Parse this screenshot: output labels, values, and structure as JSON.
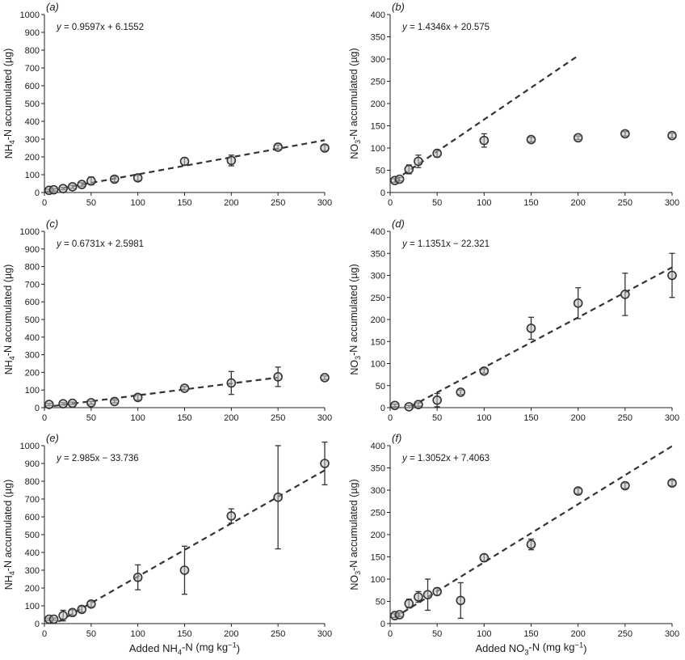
{
  "chart_data": [
    {
      "panel_label": "(a)",
      "type": "scatter",
      "ylabel": "NH4-N accumulated (µg)",
      "xlabel": "",
      "xlim": [
        0,
        300
      ],
      "ylim": [
        0,
        1000
      ],
      "xticks": [
        "0",
        "50",
        "100",
        "150",
        "200",
        "250",
        "300"
      ],
      "yticks": [
        "0",
        "100",
        "200",
        "300",
        "400",
        "500",
        "600",
        "700",
        "800",
        "900",
        "1000"
      ],
      "equation": "y = 0.9597x + 6.1552",
      "fit": {
        "slope": 0.9597,
        "intercept": 6.1552,
        "x_range": [
          20,
          300
        ]
      },
      "points": [
        {
          "x": 5,
          "y": 12,
          "err": 6
        },
        {
          "x": 10,
          "y": 15,
          "err": 6
        },
        {
          "x": 20,
          "y": 22,
          "err": 6
        },
        {
          "x": 30,
          "y": 32,
          "err": 8
        },
        {
          "x": 40,
          "y": 45,
          "err": 10
        },
        {
          "x": 50,
          "y": 65,
          "err": 22
        },
        {
          "x": 75,
          "y": 75,
          "err": 15
        },
        {
          "x": 100,
          "y": 82,
          "err": 15
        },
        {
          "x": 150,
          "y": 175,
          "err": 20
        },
        {
          "x": 200,
          "y": 180,
          "err": 30
        },
        {
          "x": 250,
          "y": 255,
          "err": 12
        },
        {
          "x": 300,
          "y": 250,
          "err": 15
        }
      ]
    },
    {
      "panel_label": "(b)",
      "type": "scatter",
      "ylabel": "NO3-N accumulated (µg)",
      "xlabel": "",
      "xlim": [
        0,
        300
      ],
      "ylim": [
        0,
        400
      ],
      "xticks": [
        "0",
        "50",
        "100",
        "150",
        "200",
        "250",
        "300"
      ],
      "yticks": [
        "0",
        "50",
        "100",
        "150",
        "200",
        "250",
        "300",
        "350",
        "400"
      ],
      "equation": "y = 1.4346x + 20.575",
      "fit": {
        "slope": 1.4346,
        "intercept": 20.575,
        "x_range": [
          5,
          200
        ]
      },
      "points": [
        {
          "x": 5,
          "y": 27,
          "err": 4
        },
        {
          "x": 10,
          "y": 30,
          "err": 4
        },
        {
          "x": 20,
          "y": 52,
          "err": 10
        },
        {
          "x": 30,
          "y": 70,
          "err": 14
        },
        {
          "x": 50,
          "y": 88,
          "err": 8
        },
        {
          "x": 100,
          "y": 117,
          "err": 15
        },
        {
          "x": 150,
          "y": 119,
          "err": 5
        },
        {
          "x": 200,
          "y": 123,
          "err": 4
        },
        {
          "x": 250,
          "y": 132,
          "err": 5
        },
        {
          "x": 300,
          "y": 128,
          "err": 5
        }
      ]
    },
    {
      "panel_label": "(c)",
      "type": "scatter",
      "ylabel": "NH4-N accumulated (µg)",
      "xlabel": "",
      "xlim": [
        0,
        300
      ],
      "ylim": [
        0,
        1000
      ],
      "xticks": [
        "0",
        "50",
        "100",
        "150",
        "200",
        "250",
        "300"
      ],
      "yticks": [
        "0",
        "100",
        "200",
        "300",
        "400",
        "500",
        "600",
        "700",
        "800",
        "900",
        "1000"
      ],
      "equation": "y = 0.6731x + 2.5981",
      "fit": {
        "slope": 0.6731,
        "intercept": 2.5981,
        "x_range": [
          10,
          250
        ]
      },
      "points": [
        {
          "x": 5,
          "y": 18,
          "err": 6
        },
        {
          "x": 20,
          "y": 22,
          "err": 6
        },
        {
          "x": 30,
          "y": 25,
          "err": 6
        },
        {
          "x": 50,
          "y": 28,
          "err": 8
        },
        {
          "x": 75,
          "y": 35,
          "err": 8
        },
        {
          "x": 100,
          "y": 58,
          "err": 15
        },
        {
          "x": 150,
          "y": 110,
          "err": 10
        },
        {
          "x": 200,
          "y": 140,
          "err": 65
        },
        {
          "x": 250,
          "y": 175,
          "err": 55
        },
        {
          "x": 300,
          "y": 170,
          "err": 10
        }
      ]
    },
    {
      "panel_label": "(d)",
      "type": "scatter",
      "ylabel": "NO3-N accumulated (µg)",
      "xlabel": "",
      "xlim": [
        0,
        300
      ],
      "ylim": [
        0,
        400
      ],
      "xticks": [
        "0",
        "50",
        "100",
        "150",
        "200",
        "250",
        "300"
      ],
      "yticks": [
        "0",
        "50",
        "100",
        "150",
        "200",
        "250",
        "300",
        "350",
        "400"
      ],
      "equation": "y = 1.1351x − 22.321",
      "fit": {
        "slope": 1.1351,
        "intercept": -22.321,
        "x_range": [
          22,
          300
        ]
      },
      "points": [
        {
          "x": 5,
          "y": 5,
          "err": 3
        },
        {
          "x": 20,
          "y": 2,
          "err": 3
        },
        {
          "x": 30,
          "y": 7,
          "err": 4
        },
        {
          "x": 50,
          "y": 17,
          "err": 15
        },
        {
          "x": 75,
          "y": 35,
          "err": 5
        },
        {
          "x": 100,
          "y": 83,
          "err": 5
        },
        {
          "x": 150,
          "y": 180,
          "err": 25
        },
        {
          "x": 200,
          "y": 237,
          "err": 35
        },
        {
          "x": 250,
          "y": 257,
          "err": 48
        },
        {
          "x": 300,
          "y": 300,
          "err": 50
        }
      ]
    },
    {
      "panel_label": "(e)",
      "type": "scatter",
      "ylabel": "NH4-N accumulated (µg)",
      "xlabel": "Added NH4-N (mg kg−1)",
      "xlim": [
        0,
        300
      ],
      "ylim": [
        0,
        1000
      ],
      "xticks": [
        "0",
        "50",
        "100",
        "150",
        "200",
        "250",
        "300"
      ],
      "yticks": [
        "0",
        "100",
        "200",
        "300",
        "400",
        "500",
        "600",
        "700",
        "800",
        "900",
        "1000"
      ],
      "equation": "y = 2.985x − 33.736",
      "fit": {
        "slope": 2.985,
        "intercept": -33.736,
        "x_range": [
          15,
          300
        ]
      },
      "points": [
        {
          "x": 5,
          "y": 25,
          "err": 6
        },
        {
          "x": 10,
          "y": 25,
          "err": 6
        },
        {
          "x": 20,
          "y": 45,
          "err": 30
        },
        {
          "x": 30,
          "y": 62,
          "err": 15
        },
        {
          "x": 40,
          "y": 80,
          "err": 15
        },
        {
          "x": 50,
          "y": 110,
          "err": 15
        },
        {
          "x": 100,
          "y": 260,
          "err": 70
        },
        {
          "x": 150,
          "y": 300,
          "err": 135
        },
        {
          "x": 200,
          "y": 605,
          "err": 40
        },
        {
          "x": 250,
          "y": 710,
          "err": 290
        },
        {
          "x": 300,
          "y": 900,
          "err": 120
        }
      ]
    },
    {
      "panel_label": "(f)",
      "type": "scatter",
      "ylabel": "NO3-N accumulated (µg)",
      "xlabel": "Added NO3-N (mg kg−1)",
      "xlim": [
        0,
        300
      ],
      "ylim": [
        0,
        400
      ],
      "xticks": [
        "0",
        "50",
        "100",
        "150",
        "200",
        "250",
        "300"
      ],
      "yticks": [
        "0",
        "50",
        "100",
        "150",
        "200",
        "250",
        "300",
        "350",
        "400"
      ],
      "equation": "y = 1.3052x + 7.4063",
      "fit": {
        "slope": 1.3052,
        "intercept": 7.4063,
        "x_range": [
          5,
          300
        ]
      },
      "points": [
        {
          "x": 5,
          "y": 18,
          "err": 4
        },
        {
          "x": 10,
          "y": 20,
          "err": 4
        },
        {
          "x": 20,
          "y": 45,
          "err": 10
        },
        {
          "x": 30,
          "y": 60,
          "err": 12
        },
        {
          "x": 40,
          "y": 65,
          "err": 35
        },
        {
          "x": 50,
          "y": 72,
          "err": 8
        },
        {
          "x": 75,
          "y": 52,
          "err": 40
        },
        {
          "x": 100,
          "y": 148,
          "err": 8
        },
        {
          "x": 150,
          "y": 178,
          "err": 12
        },
        {
          "x": 200,
          "y": 298,
          "err": 6
        },
        {
          "x": 250,
          "y": 310,
          "err": 6
        },
        {
          "x": 300,
          "y": 316,
          "err": 6
        }
      ]
    }
  ]
}
